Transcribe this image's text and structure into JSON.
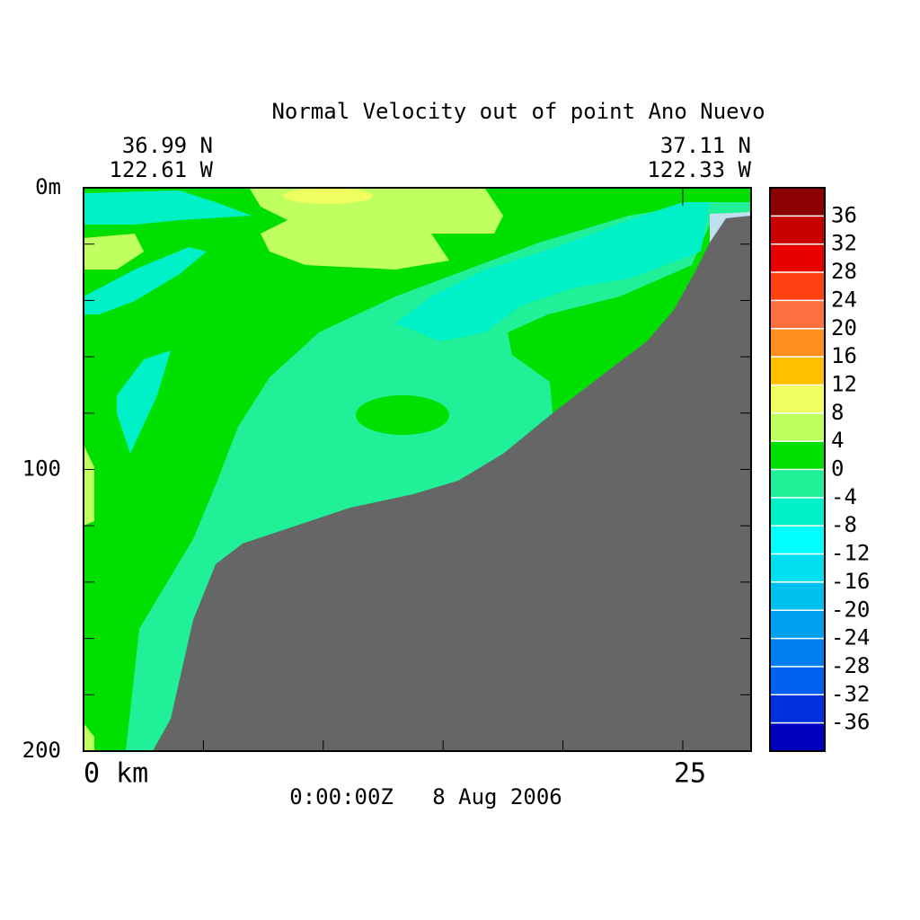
{
  "chart_data": {
    "type": "contour",
    "title": "Normal Velocity out of point Ano Nuevo",
    "left_lat": "36.99 N",
    "left_lon": "122.61 W",
    "right_lat": "37.11 N",
    "right_lon": "122.33 W",
    "time_label": "0:00:00Z   8 Aug 2006",
    "xlim": [
      0,
      27.85
    ],
    "xticks": [
      {
        "value": 0,
        "label": "0 km"
      },
      25
    ],
    "x_minor_ticks": [
      5,
      10,
      15,
      20
    ],
    "ylim": [
      200,
      0
    ],
    "yticks": [
      {
        "value": 0,
        "label": "0m"
      },
      100,
      200
    ],
    "y_minor_ticks": [
      20,
      40,
      60,
      80,
      120,
      140,
      160,
      180
    ],
    "clim": [
      -40,
      40
    ],
    "cticks": [
      -36,
      -32,
      -28,
      -24,
      -20,
      -16,
      -12,
      -8,
      -4,
      0,
      4,
      8,
      12,
      16,
      20,
      24,
      28,
      32,
      36
    ],
    "colors": [
      "#0000c0",
      "#0030e0",
      "#0060f0",
      "#0080f0",
      "#00a0f0",
      "#00c0f0",
      "#00e0f0",
      "#00ffff",
      "#00f0c8",
      "#20f098",
      "#00e000",
      "#c0ff60",
      "#f0ff60",
      "#ffc000",
      "#ff9020",
      "#ff7040",
      "#ff4010",
      "#e80000",
      "#c80000",
      "#8b0000"
    ],
    "land_color": "#666666"
  }
}
